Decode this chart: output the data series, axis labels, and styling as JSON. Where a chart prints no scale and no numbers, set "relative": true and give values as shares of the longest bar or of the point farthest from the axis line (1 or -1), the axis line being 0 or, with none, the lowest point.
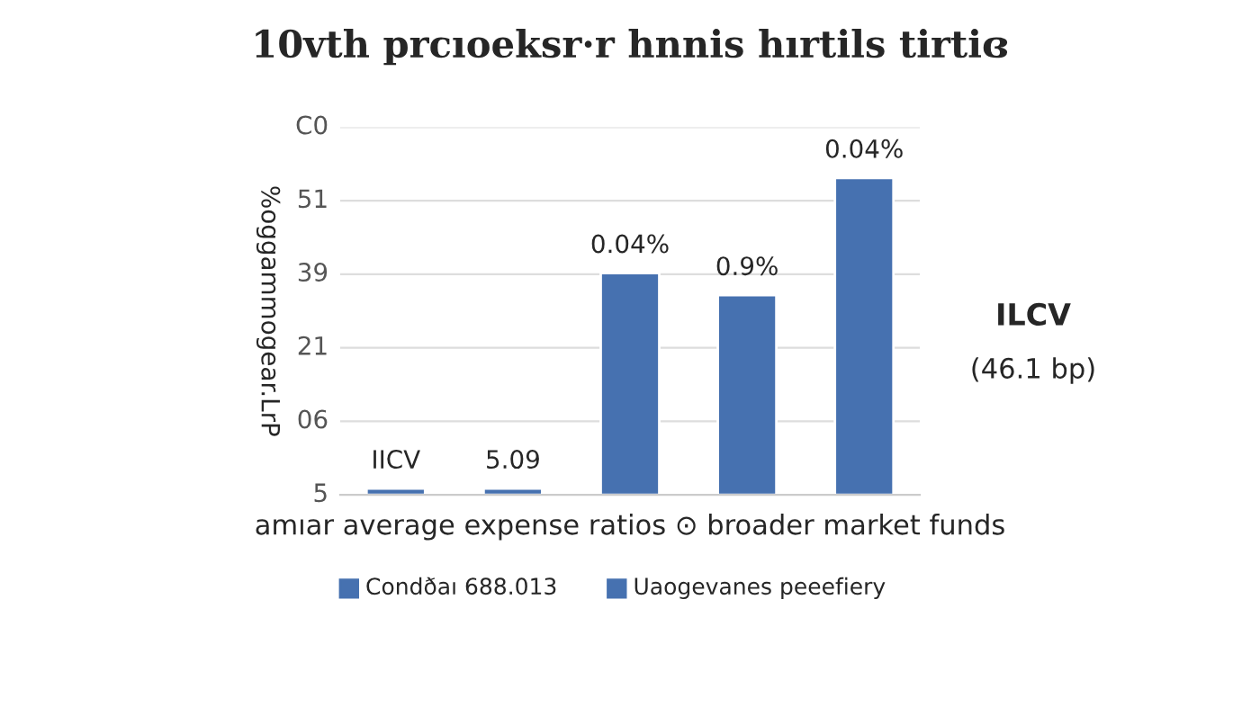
{
  "chart_data": {
    "type": "bar",
    "title": "10vth prcıoeksr·r hnnis hırtils tirtiɞ",
    "xlabel": "amıar average expense ratios ⊙ broader market funds",
    "ylabel": "%oggammogear.LrP",
    "categories": [
      null,
      null,
      null,
      null,
      null
    ],
    "relative": true,
    "series": [
      {
        "color": "#4671b0",
        "values": [
          0.02,
          0.02,
          0.7,
          0.63,
          1
        ]
      }
    ],
    "grid": "y",
    "annotations": [
      "IICV",
      "5.09",
      "0.04%",
      "0.9%",
      "0.04%",
      "5",
      "06",
      "21",
      "39",
      "51",
      "C0",
      "ILCV",
      "(46.1 bp)",
      "Condðaı 688.013",
      "Uaogevanes peeefiery"
    ]
  }
}
